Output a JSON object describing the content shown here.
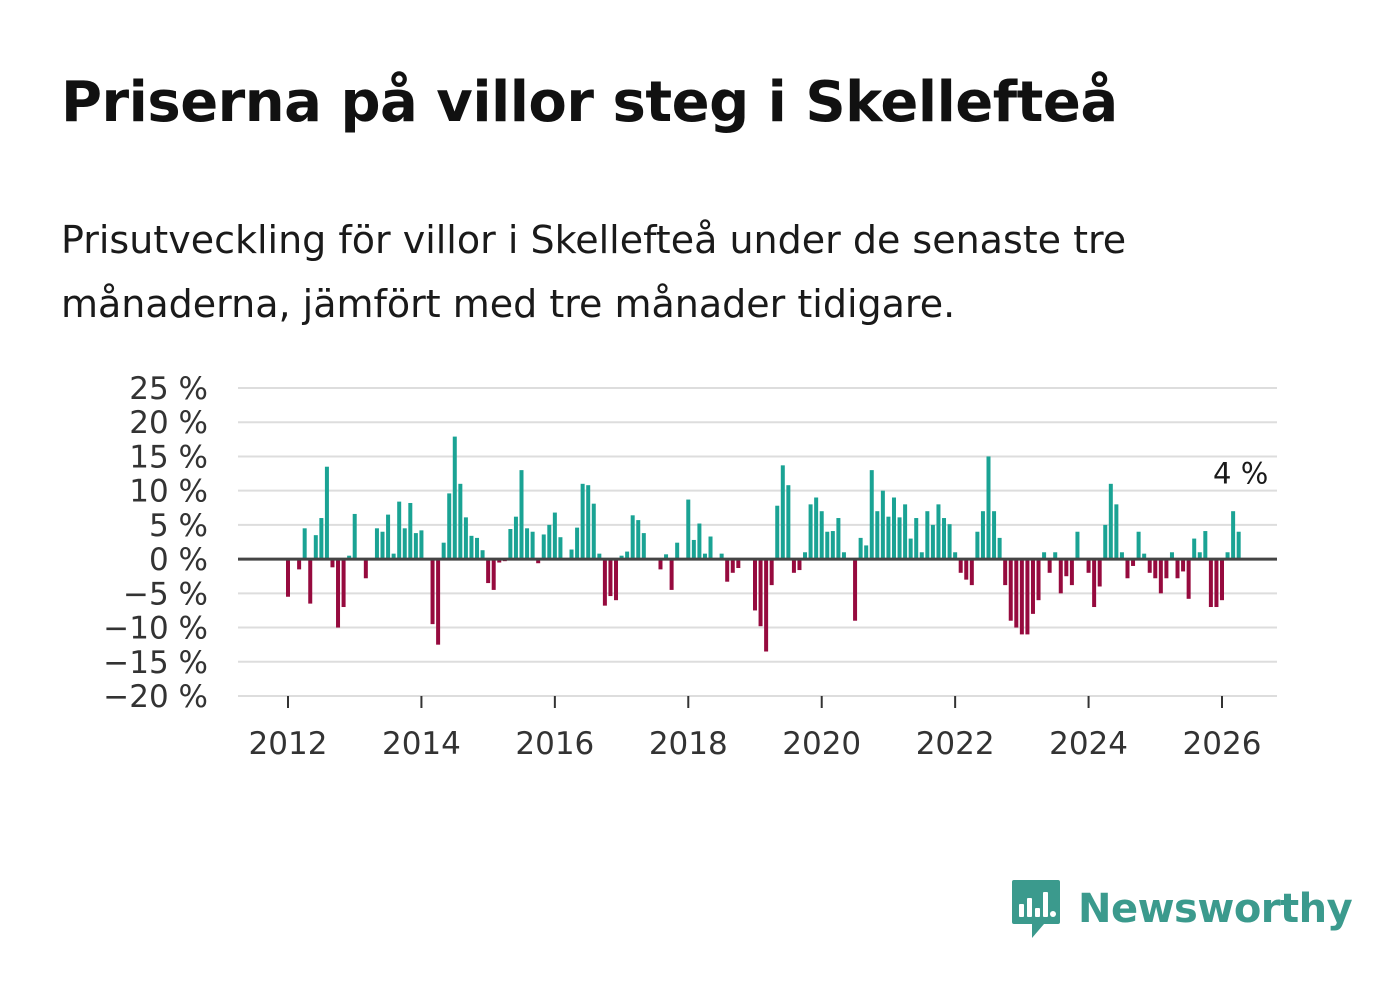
{
  "title": "Priserna på villor steg i Skellefteå",
  "subtitle": "Prisutveckling för villor i Skellefteå under de senaste tre månaderna, jämfört med tre månader tidigare.",
  "brand": "Newsworthy",
  "colors": {
    "positive": "#1aa394",
    "negative": "#960a3e",
    "grid": "#dddddd",
    "zero": "#444444",
    "brand": "#3b9a8d"
  },
  "chart_data": {
    "type": "bar",
    "title": "",
    "xlabel": "",
    "ylabel": "",
    "ylim": [
      -20,
      25
    ],
    "y_ticks": [
      25,
      20,
      15,
      10,
      5,
      0,
      -5,
      -10,
      -15,
      -20
    ],
    "y_tick_labels": [
      "25 %",
      "20 %",
      "15 %",
      "10 %",
      "5 %",
      "0 %",
      "−5 %",
      "−10 %",
      "−15 %",
      "−20 %"
    ],
    "x_ticks": [
      "2012",
      "2014",
      "2016",
      "2018",
      "2020",
      "2022",
      "2024",
      "2026"
    ],
    "x_tick_values": [
      2012,
      2014,
      2016,
      2018,
      2020,
      2022,
      2024,
      2026
    ],
    "start_year": 2012,
    "frequency": "monthly",
    "last_value_label": "4 %",
    "values": [
      -5.5,
      0.0,
      -1.5,
      4.5,
      -6.5,
      3.5,
      6.0,
      13.5,
      -1.2,
      -10.0,
      -7.0,
      0.5,
      6.6,
      0.0,
      -2.8,
      0.0,
      4.5,
      4.0,
      6.5,
      0.8,
      8.4,
      4.5,
      8.2,
      3.8,
      4.2,
      0.0,
      -9.5,
      -12.5,
      2.4,
      9.6,
      17.9,
      11.0,
      6.1,
      3.4,
      3.1,
      1.3,
      -3.5,
      -4.5,
      -0.5,
      -0.3,
      4.4,
      6.2,
      13.0,
      4.5,
      4.0,
      -0.6,
      3.6,
      5.0,
      6.8,
      3.2,
      0.0,
      1.4,
      4.6,
      11.0,
      10.8,
      8.1,
      0.8,
      -6.8,
      -5.4,
      -6.0,
      0.5,
      1.1,
      6.4,
      5.7,
      3.8,
      0.0,
      0.0,
      -1.5,
      0.7,
      -4.5,
      2.4,
      0.0,
      8.7,
      2.8,
      5.2,
      0.8,
      3.3,
      0.0,
      0.8,
      -3.3,
      -2.0,
      -1.3,
      0.0,
      0.0,
      -7.5,
      -9.8,
      -13.5,
      -3.8,
      7.8,
      13.7,
      10.8,
      -2.0,
      -1.6,
      1.0,
      8.0,
      9.0,
      7.0,
      4.0,
      4.1,
      6.0,
      1.0,
      0.0,
      -9.0,
      3.1,
      2.0,
      13.0,
      7.0,
      10.0,
      6.2,
      9.0,
      6.1,
      8.0,
      3.0,
      6.0,
      1.0,
      7.0,
      5.0,
      8.0,
      6.0,
      5.1,
      1.0,
      -2.0,
      -3.0,
      -3.8,
      4.0,
      7.0,
      15.0,
      7.0,
      3.1,
      -3.8,
      -9.0,
      -10.0,
      -11.0,
      -11.0,
      -8.0,
      -6.0,
      1.0,
      -2.0,
      1.0,
      -5.0,
      -2.5,
      -3.8,
      4.0,
      0.0,
      -2.0,
      -7.0,
      -4.0,
      5.0,
      11.0,
      8.0,
      1.0,
      -2.8,
      -1.0,
      4.0,
      0.8,
      -2.0,
      -2.8,
      -5.0,
      -2.8,
      1.0,
      -2.8,
      -1.8,
      -5.8,
      3.0,
      1.0,
      4.1,
      -7.0,
      -7.0,
      -6.0,
      1.0,
      7.0,
      4.0
    ]
  }
}
